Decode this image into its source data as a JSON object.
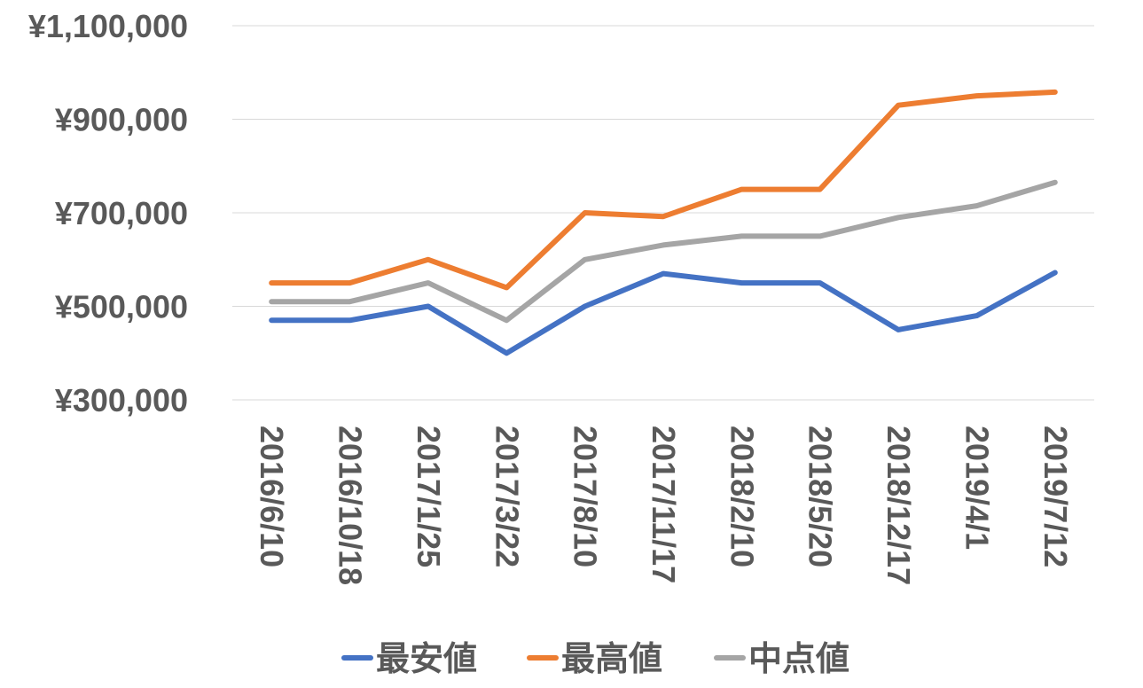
{
  "chart_data": {
    "type": "line",
    "title": "",
    "xlabel": "",
    "ylabel": "",
    "categories": [
      "2016/6/10",
      "2016/10/18",
      "2017/1/25",
      "2017/3/22",
      "2017/8/10",
      "2017/11/17",
      "2018/2/10",
      "2018/5/20",
      "2018/12/17",
      "2019/4/1",
      "2019/7/12"
    ],
    "y_ticks": [
      {
        "value": 300000,
        "label": "¥300,000"
      },
      {
        "value": 500000,
        "label": "¥500,000"
      },
      {
        "value": 700000,
        "label": "¥700,000"
      },
      {
        "value": 900000,
        "label": "¥900,000"
      },
      {
        "value": 1100000,
        "label": "¥1,100,000"
      }
    ],
    "ylim": [
      300000,
      1100000
    ],
    "grid": true,
    "legend_position": "bottom",
    "series": [
      {
        "name": "最安値",
        "color": "#4472c4",
        "values": [
          470000,
          470000,
          500000,
          400000,
          500000,
          570000,
          550000,
          550000,
          450000,
          480000,
          572000
        ]
      },
      {
        "name": "最高値",
        "color": "#ed7d31",
        "values": [
          550000,
          550000,
          600000,
          540000,
          700000,
          692000,
          750000,
          750000,
          930000,
          950000,
          958000
        ]
      },
      {
        "name": "中点値",
        "color": "#a5a5a5",
        "values": [
          510000,
          510000,
          550000,
          470000,
          600000,
          631000,
          650000,
          650000,
          690000,
          715000,
          765000
        ]
      }
    ]
  }
}
